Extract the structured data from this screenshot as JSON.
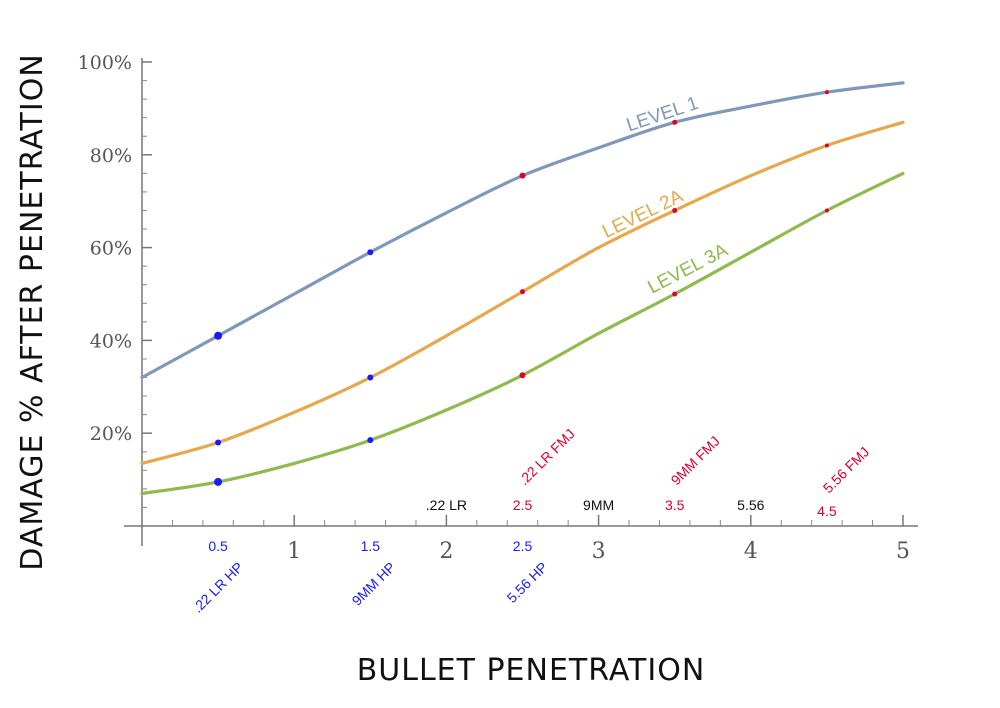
{
  "chart_data": {
    "type": "line",
    "xlabel": "BULLET PENETRATION",
    "ylabel": "DAMAGE % AFTER PENETRATION",
    "xlim": [
      0,
      5
    ],
    "ylim": [
      0,
      100
    ],
    "x_ticks": [
      {
        "value": 1,
        "label": "1"
      },
      {
        "value": 2,
        "label": "2"
      },
      {
        "value": 3,
        "label": "3"
      },
      {
        "value": 4,
        "label": "4"
      },
      {
        "value": 5,
        "label": "5"
      }
    ],
    "y_ticks": [
      {
        "value": 20,
        "label": "20%"
      },
      {
        "value": 40,
        "label": "40%"
      },
      {
        "value": 60,
        "label": "60%"
      },
      {
        "value": 80,
        "label": "80%"
      },
      {
        "value": 100,
        "label": "100%"
      }
    ],
    "grid": false,
    "series": [
      {
        "name": "LEVEL 1",
        "color": "#7f97b9",
        "curve": [
          [
            0,
            32
          ],
          [
            0.5,
            41
          ],
          [
            1,
            50
          ],
          [
            1.5,
            59
          ],
          [
            2,
            67.5
          ],
          [
            2.5,
            75.5
          ],
          [
            3,
            81.5
          ],
          [
            3.5,
            87
          ],
          [
            4,
            90.5
          ],
          [
            4.5,
            93.5
          ],
          [
            5,
            95.5
          ]
        ],
        "label_at": [
          3.2,
          85
        ]
      },
      {
        "name": "LEVEL 2A",
        "color": "#e6a84a",
        "curve": [
          [
            0,
            13.5
          ],
          [
            0.5,
            18
          ],
          [
            1,
            24.5
          ],
          [
            1.5,
            32
          ],
          [
            2,
            41
          ],
          [
            2.5,
            50.5
          ],
          [
            3,
            60
          ],
          [
            3.5,
            68
          ],
          [
            4,
            75.5
          ],
          [
            4.5,
            82
          ],
          [
            5,
            87
          ]
        ],
        "label_at": [
          3.05,
          62
        ]
      },
      {
        "name": "LEVEL 3A",
        "color": "#8fba4d",
        "curve": [
          [
            0,
            7
          ],
          [
            0.5,
            9.5
          ],
          [
            1,
            13.5
          ],
          [
            1.5,
            18.5
          ],
          [
            2,
            25
          ],
          [
            2.5,
            32.5
          ],
          [
            3,
            41.5
          ],
          [
            3.5,
            50
          ],
          [
            4,
            59
          ],
          [
            4.5,
            68
          ],
          [
            5,
            76
          ]
        ],
        "label_at": [
          3.35,
          50
        ]
      }
    ],
    "markers": [
      {
        "series": 0,
        "x": 0.5,
        "y": 41,
        "color": "#1a1aff",
        "r": 4
      },
      {
        "series": 0,
        "x": 1.5,
        "y": 59,
        "color": "#1a1aff",
        "r": 3
      },
      {
        "series": 0,
        "x": 2.5,
        "y": 75.5,
        "color": "#e0002a",
        "r": 3
      },
      {
        "series": 0,
        "x": 3.5,
        "y": 87,
        "color": "#e0002a",
        "r": 2.5
      },
      {
        "series": 0,
        "x": 4.5,
        "y": 93.5,
        "color": "#e0002a",
        "r": 2
      },
      {
        "series": 1,
        "x": 0.5,
        "y": 18,
        "color": "#1a1aff",
        "r": 3
      },
      {
        "series": 1,
        "x": 1.5,
        "y": 32,
        "color": "#1a1aff",
        "r": 3
      },
      {
        "series": 1,
        "x": 2.5,
        "y": 50.5,
        "color": "#e0002a",
        "r": 2.5
      },
      {
        "series": 1,
        "x": 3.5,
        "y": 68,
        "color": "#e0002a",
        "r": 2.5
      },
      {
        "series": 1,
        "x": 4.5,
        "y": 82,
        "color": "#e0002a",
        "r": 2
      },
      {
        "series": 2,
        "x": 0.5,
        "y": 9.5,
        "color": "#1a1aff",
        "r": 4
      },
      {
        "series": 2,
        "x": 1.5,
        "y": 18.5,
        "color": "#1a1aff",
        "r": 3
      },
      {
        "series": 2,
        "x": 2.5,
        "y": 32.5,
        "color": "#e0002a",
        "r": 3
      },
      {
        "series": 2,
        "x": 3.5,
        "y": 50,
        "color": "#e0002a",
        "r": 2.5
      },
      {
        "series": 2,
        "x": 4.5,
        "y": 68,
        "color": "#e0002a",
        "r": 2
      }
    ],
    "annotations": [
      {
        "text": "0.5",
        "x": 0.5,
        "color": "#1a1aff",
        "pos": "below-axis"
      },
      {
        "text": "1.5",
        "x": 1.5,
        "color": "#1a1aff",
        "pos": "below-axis"
      },
      {
        "text": "2.5",
        "x": 2.5,
        "color": "#1a1aff",
        "pos": "below-axis"
      },
      {
        "text": ".22 LR HP",
        "x": 0.5,
        "color": "#1a1aff",
        "pos": "below-rotated"
      },
      {
        "text": "9MM HP",
        "x": 1.5,
        "color": "#1a1aff",
        "pos": "below-rotated"
      },
      {
        "text": "5.56 HP",
        "x": 2.5,
        "color": "#1a1aff",
        "pos": "below-rotated"
      },
      {
        "text": ".22 LR",
        "x": 2.0,
        "color": "#111111",
        "pos": "above-axis"
      },
      {
        "text": "2.5",
        "x": 2.5,
        "color": "#e0002a",
        "pos": "above-axis"
      },
      {
        "text": "9MM",
        "x": 3.0,
        "color": "#111111",
        "pos": "above-axis"
      },
      {
        "text": "3.5",
        "x": 3.5,
        "color": "#e0002a",
        "pos": "above-axis"
      },
      {
        "text": "5.56",
        "x": 4.0,
        "color": "#111111",
        "pos": "above-axis"
      },
      {
        "text": "4.5",
        "x": 4.5,
        "color": "#e0002a",
        "pos": "above-axis-low"
      },
      {
        "text": ".22 LR FMJ",
        "x": 2.5,
        "color": "#e0002a",
        "pos": "above-rotated"
      },
      {
        "text": "9MM FMJ",
        "x": 3.5,
        "color": "#e0002a",
        "pos": "above-rotated"
      },
      {
        "text": "5.56 FMJ",
        "x": 4.5,
        "color": "#e0002a",
        "pos": "above-rotated-high"
      }
    ]
  }
}
